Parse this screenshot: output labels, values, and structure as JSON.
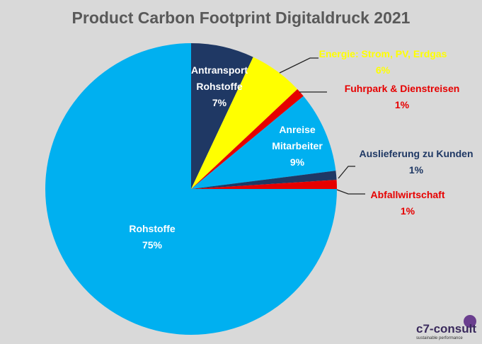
{
  "chart_data": {
    "type": "pie",
    "title": "Product Carbon Footprint Digitaldruck 2021",
    "slices": [
      {
        "label": "Antransport Rohstoffe",
        "lines": [
          "Antransport",
          "Rohstoffe"
        ],
        "value": 7,
        "pct": "7%",
        "color": "#1f3864",
        "text_color": "#ffffff"
      },
      {
        "label": "Energie: Strom, PV, Erdgas",
        "lines": [
          "Energie: Strom, PV, Erdgas"
        ],
        "value": 6,
        "pct": "6%",
        "color": "#ffff00",
        "text_color": "#ffff00"
      },
      {
        "label": "Fuhrpark & Dienstreisen",
        "lines": [
          "Fuhrpark & Dienstreisen"
        ],
        "value": 1,
        "pct": "1%",
        "color": "#e60000",
        "text_color": "#e60000"
      },
      {
        "label": "Anreise Mitarbeiter",
        "lines": [
          "Anreise",
          "Mitarbeiter"
        ],
        "value": 9,
        "pct": "9%",
        "color": "#00b0f0",
        "text_color": "#ffffff"
      },
      {
        "label": "Auslieferung zu Kunden",
        "lines": [
          "Auslieferung zu Kunden"
        ],
        "value": 1,
        "pct": "1%",
        "color": "#1f3864",
        "text_color": "#1f3864"
      },
      {
        "label": "Abfallwirtschaft",
        "lines": [
          "Abfallwirtschaft"
        ],
        "value": 1,
        "pct": "1%",
        "color": "#e60000",
        "text_color": "#e60000"
      },
      {
        "label": "Rohstoffe",
        "lines": [
          "Rohstoffe"
        ],
        "value": 75,
        "pct": "75%",
        "color": "#00b0f0",
        "text_color": "#ffffff"
      }
    ],
    "start_angle": "top",
    "direction": "clockwise",
    "legend": "none"
  },
  "logo": {
    "name": "c7-consult",
    "tagline": "sustainable performance"
  }
}
